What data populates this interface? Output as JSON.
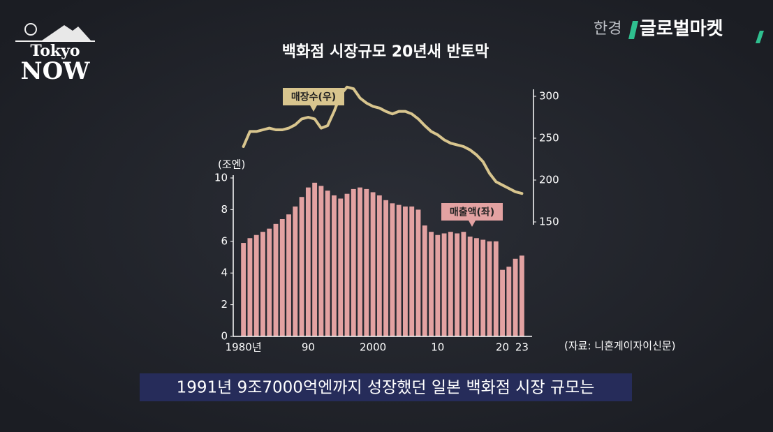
{
  "logo": {
    "line1": "Tokyo",
    "line2": "NOW"
  },
  "brand": {
    "prefix": "한경",
    "name": "글로벌마켓"
  },
  "caption": "1991년 9조7000억엔까지 성장했던 일본 백화점 시장 규모는",
  "chart_data": {
    "type": "bar",
    "title": "백화점 시장규모 20년새 반토막",
    "ylabel": "(조엔)",
    "source": "(자료: 니혼게이자이신문)",
    "categories": [
      "1980년",
      null,
      null,
      null,
      null,
      null,
      null,
      null,
      null,
      null,
      "90",
      null,
      null,
      null,
      null,
      null,
      null,
      null,
      null,
      null,
      "2000",
      null,
      null,
      null,
      null,
      null,
      null,
      null,
      null,
      null,
      "10",
      null,
      null,
      null,
      null,
      null,
      null,
      null,
      null,
      null,
      "20",
      null,
      null,
      "23"
    ],
    "ylim": [
      0,
      10
    ],
    "yticks": [
      0,
      2,
      4,
      6,
      8,
      10
    ],
    "y2lim": [
      150,
      300
    ],
    "y2ticks": [
      150,
      200,
      250,
      300
    ],
    "series": [
      {
        "name": "매출액(좌)",
        "color": "#e3a2a2",
        "type": "bar",
        "values": [
          5.9,
          6.2,
          6.4,
          6.6,
          6.8,
          7.1,
          7.4,
          7.7,
          8.2,
          8.8,
          9.4,
          9.7,
          9.5,
          9.2,
          8.9,
          8.7,
          9.0,
          9.3,
          9.4,
          9.3,
          9.1,
          8.9,
          8.6,
          8.4,
          8.3,
          8.2,
          8.2,
          8.0,
          7.0,
          6.6,
          6.4,
          6.5,
          6.6,
          6.5,
          6.6,
          6.3,
          6.2,
          6.1,
          6.0,
          6.0,
          4.2,
          4.4,
          4.9,
          5.1
        ]
      },
      {
        "name": "매장수(우)",
        "color": "#d8c58e",
        "type": "line",
        "axis": "y2",
        "values": [
          240,
          258,
          258,
          260,
          262,
          260,
          260,
          262,
          266,
          273,
          275,
          273,
          262,
          265,
          282,
          302,
          311,
          309,
          298,
          292,
          288,
          286,
          282,
          279,
          282,
          282,
          279,
          273,
          265,
          258,
          254,
          248,
          244,
          242,
          240,
          236,
          230,
          222,
          208,
          198,
          194,
          190,
          186,
          184
        ]
      }
    ]
  }
}
